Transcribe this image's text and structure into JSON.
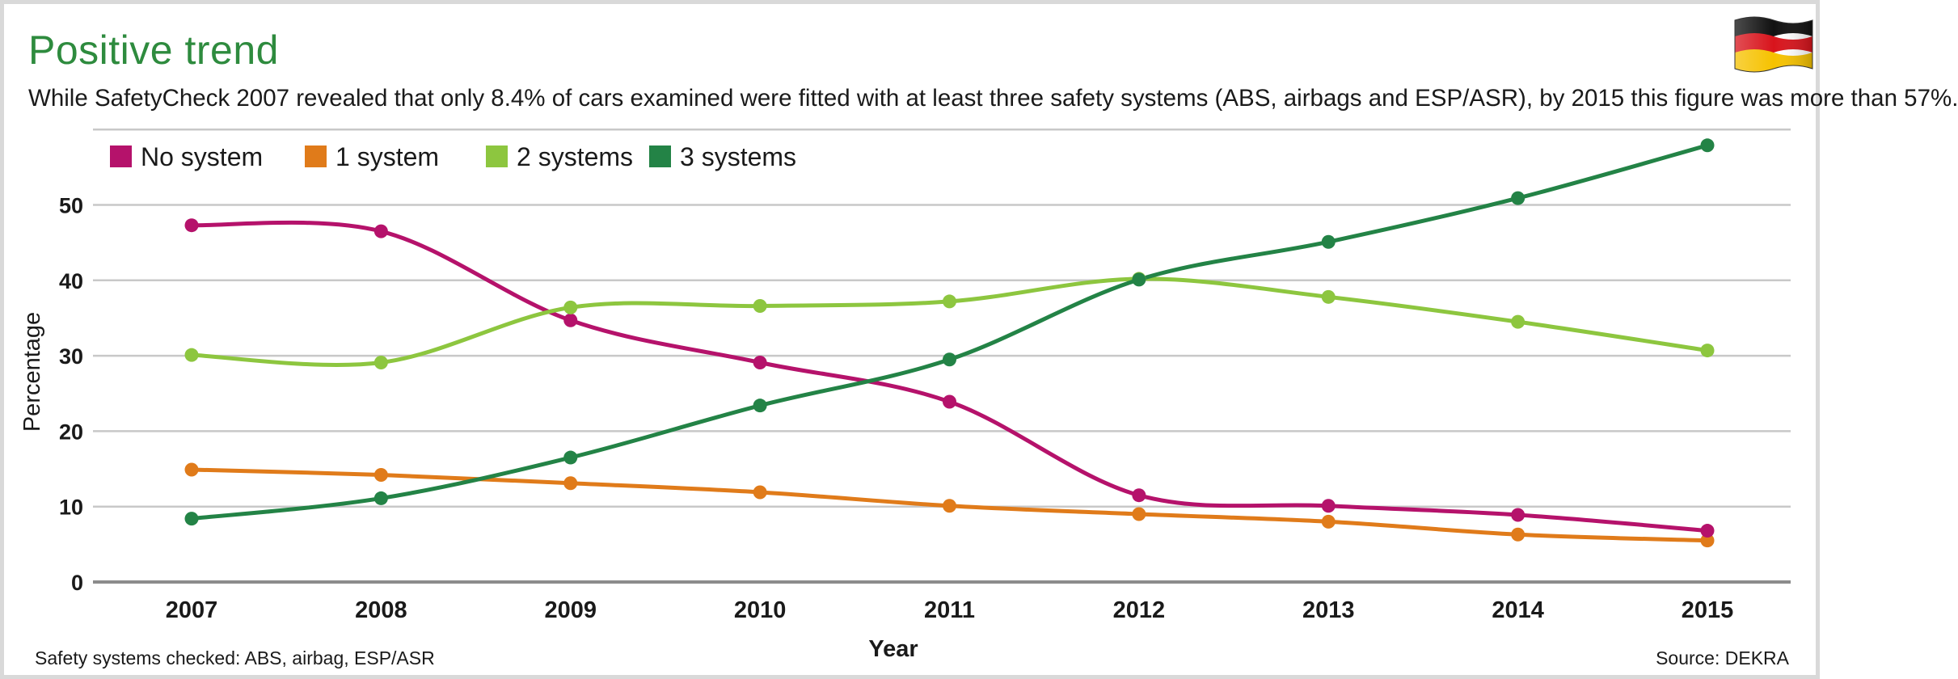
{
  "title": "Positive trend",
  "subtitle": "While SafetyCheck 2007 revealed that only 8.4% of cars examined were fitted with at least three safety systems (ABS, airbags and ESP/ASR), by 2015 this figure was more than 57%.",
  "footnote": "Safety systems checked: ABS, airbag, ESP/ASR",
  "source": "Source: DEKRA",
  "flag": "germany-flag",
  "colors": {
    "no_system": "#b5126b",
    "one_system": "#e07b1a",
    "two_systems": "#8dc63f",
    "three_systems": "#238346",
    "title": "#2e8b3e",
    "grid": "#c8c8c8"
  },
  "chart_data": {
    "type": "line",
    "title": "Positive trend",
    "xlabel": "Year",
    "ylabel": "Percentage",
    "x": [
      "2007",
      "2008",
      "2009",
      "2010",
      "2011",
      "2012",
      "2013",
      "2014",
      "2015"
    ],
    "ylim": [
      0,
      60
    ],
    "yticks": [
      0,
      10,
      20,
      30,
      40,
      50
    ],
    "grid": true,
    "legend_position": "top-left",
    "series": [
      {
        "name": "No system",
        "key": "no_system",
        "values": [
          47.3,
          46.5,
          34.7,
          29.1,
          23.9,
          11.5,
          10.1,
          8.9,
          6.8
        ]
      },
      {
        "name": "1 system",
        "key": "one_system",
        "values": [
          14.9,
          14.2,
          13.1,
          11.9,
          10.1,
          9.0,
          8.0,
          6.3,
          5.5
        ]
      },
      {
        "name": "2 systems",
        "key": "two_systems",
        "values": [
          30.1,
          29.1,
          36.4,
          36.6,
          37.2,
          40.2,
          37.8,
          34.5,
          30.7
        ]
      },
      {
        "name": "3 systems",
        "key": "three_systems",
        "values": [
          8.4,
          11.1,
          16.5,
          23.4,
          29.5,
          40.1,
          45.1,
          50.9,
          57.9
        ]
      }
    ]
  }
}
